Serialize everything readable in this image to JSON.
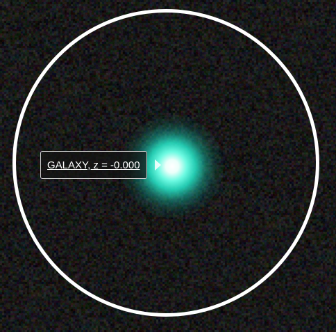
{
  "object_label": {
    "text": "GALAXY, z = -0.000"
  },
  "colors": {
    "aperture_circle": "#ffffff",
    "galaxy_core": "#40e8d0",
    "label_background": "#141414",
    "label_text": "#ffffff"
  }
}
